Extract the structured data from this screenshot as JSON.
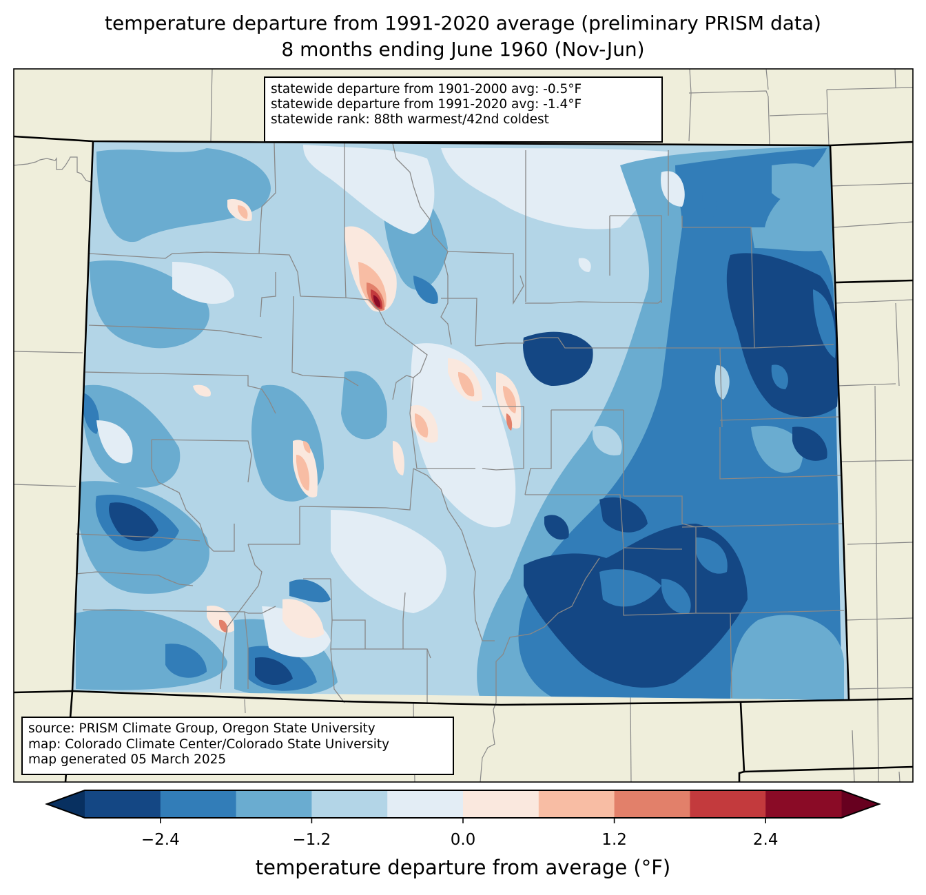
{
  "title": {
    "line1": "temperature departure from 1991-2020 average (preliminary PRISM data)",
    "line2": "8 months ending June 1960 (Nov-Jun)"
  },
  "stats_box": {
    "line1": "statewide departure from 1901-2000 avg: -0.5°F",
    "line2": "statewide departure from 1991-2020 avg: -1.4°F",
    "line3": "statewide rank: 88th warmest/42nd coldest"
  },
  "source_box": {
    "line1": "source: PRISM Climate Group, Oregon State University",
    "line2": "map: Colorado Climate Center/Colorado State University",
    "line3": "map generated 05 March 2025"
  },
  "colorbar": {
    "label": "temperature departure from average (°F)",
    "range": [
      -3.0,
      3.0
    ],
    "bin_width": 0.6,
    "ticks": [
      {
        "value": -2.4,
        "label": "−2.4"
      },
      {
        "value": -1.2,
        "label": "−1.2"
      },
      {
        "value": 0.0,
        "label": "0.0"
      },
      {
        "value": 1.2,
        "label": "1.2"
      },
      {
        "value": 2.4,
        "label": "2.4"
      }
    ],
    "under_color": "#083060",
    "over_color": "#67001f",
    "bins": [
      {
        "from": -3.0,
        "to": -2.4,
        "color": "#144784"
      },
      {
        "from": -2.4,
        "to": -1.8,
        "color": "#327db8"
      },
      {
        "from": -1.8,
        "to": -1.2,
        "color": "#6aacd0"
      },
      {
        "from": -1.2,
        "to": -0.6,
        "color": "#b3d5e7"
      },
      {
        "from": -0.6,
        "to": 0.0,
        "color": "#e3edf5"
      },
      {
        "from": 0.0,
        "to": 0.6,
        "color": "#fae8de"
      },
      {
        "from": 0.6,
        "to": 1.2,
        "color": "#f8bda4"
      },
      {
        "from": 1.2,
        "to": 1.8,
        "color": "#e2806a"
      },
      {
        "from": 1.8,
        "to": 2.4,
        "color": "#c33a3d"
      },
      {
        "from": 2.4,
        "to": 3.0,
        "color": "#8a0b26"
      }
    ]
  },
  "map": {
    "land_color": "#efeedb",
    "state_border_color": "#000000",
    "county_border_color": "#888888",
    "statewide_departure_1991_2020": -1.4
  }
}
